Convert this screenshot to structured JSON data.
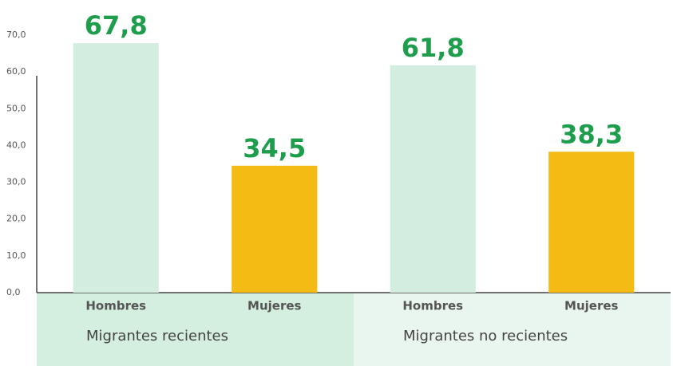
{
  "chart_data": {
    "type": "bar",
    "categories": [
      "Hombres",
      "Mujeres",
      "Hombres",
      "Mujeres"
    ],
    "groups": [
      "Migrantes recientes",
      "Migrantes no recientes"
    ],
    "values": [
      67.8,
      34.5,
      61.8,
      38.3
    ],
    "value_labels": [
      "67,8",
      "34,5",
      "61,8",
      "38,3"
    ],
    "colors": [
      "#d3eee0",
      "#f4bb15",
      "#d3eee0",
      "#f4bb15"
    ],
    "ylim": [
      0,
      70
    ],
    "yticks": [
      {
        "value": 0,
        "label": "0,0"
      },
      {
        "value": 10,
        "label": "10,0"
      },
      {
        "value": 20,
        "label": "20,0"
      },
      {
        "value": 30,
        "label": "30,0"
      },
      {
        "value": 40,
        "label": "40,0"
      },
      {
        "value": 50,
        "label": "50,0"
      },
      {
        "value": 60,
        "label": "60,0"
      },
      {
        "value": 70,
        "label": "70,0"
      }
    ],
    "grid": false
  }
}
